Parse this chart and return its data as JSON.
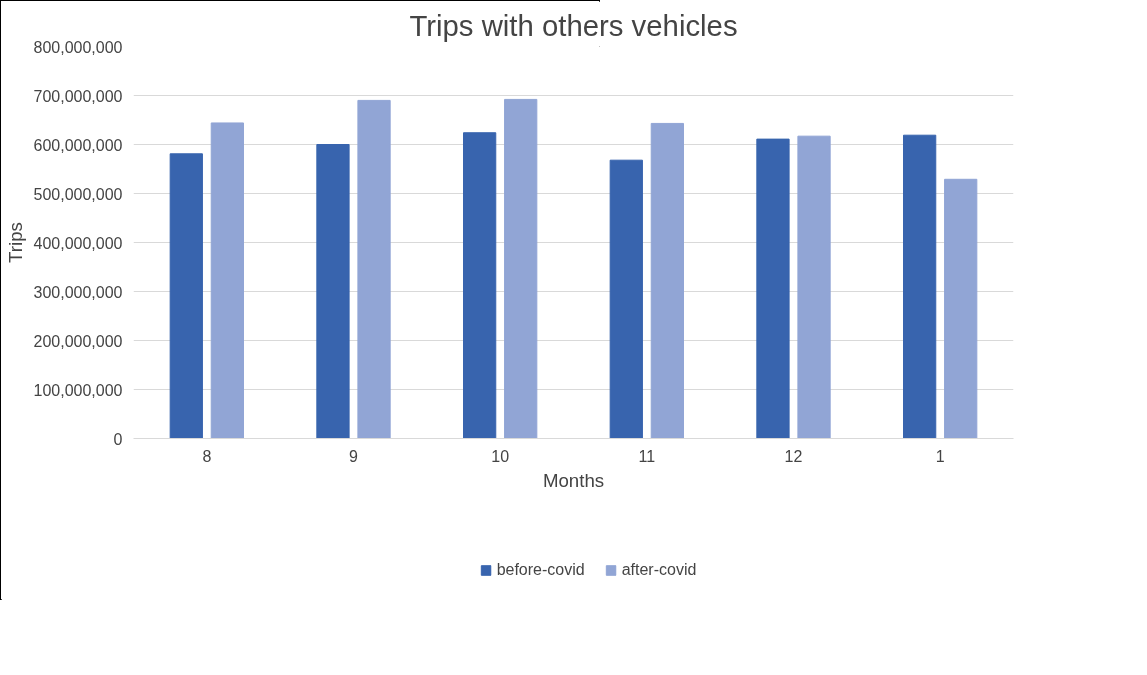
{
  "chart_data": {
    "type": "bar",
    "title": "Trips with others vehicles",
    "xlabel": "Months",
    "ylabel": "Trips",
    "categories": [
      "8",
      "9",
      "10",
      "11",
      "12",
      "1"
    ],
    "series": [
      {
        "name": "before-covid",
        "color": "#3864ae",
        "values": [
          581000000,
          600000000,
          624000000,
          568000000,
          611000000,
          619000000
        ]
      },
      {
        "name": "after-covid",
        "color": "#91a5d5",
        "values": [
          644000000,
          690000000,
          692000000,
          643000000,
          617000000,
          529000000
        ]
      }
    ],
    "ylim": [
      0,
      800000000
    ],
    "yticks": [
      {
        "value": 0,
        "label": "0"
      },
      {
        "value": 100000000,
        "label": "100,000,000"
      },
      {
        "value": 200000000,
        "label": "200,000,000"
      },
      {
        "value": 300000000,
        "label": "300,000,000"
      },
      {
        "value": 400000000,
        "label": "400,000,000"
      },
      {
        "value": 500000000,
        "label": "500,000,000"
      },
      {
        "value": 600000000,
        "label": "600,000,000"
      },
      {
        "value": 700000000,
        "label": "700,000,000"
      },
      {
        "value": 800000000,
        "label": "800,000,000"
      }
    ],
    "grid": "y",
    "legend": "bottom"
  }
}
